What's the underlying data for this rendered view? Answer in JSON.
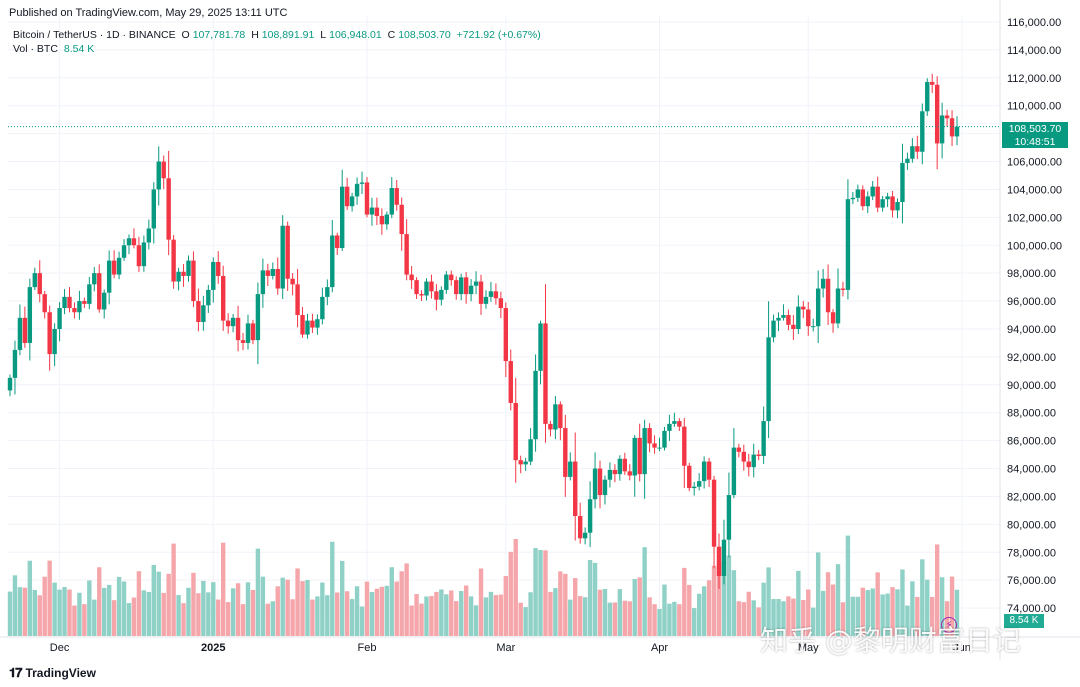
{
  "published": "Published on TradingView.com, May 29, 2025 13:11 UTC",
  "legend": {
    "symbol": "Bitcoin / TetherUS · 1D · BINANCE",
    "o_label": "O",
    "o": "107,781.78",
    "h_label": "H",
    "h": "108,891.91",
    "l_label": "L",
    "l": "106,948.01",
    "c_label": "C",
    "c": "108,503.70",
    "change": "+721.92 (+0.67%)",
    "vol_label": "Vol · BTC",
    "vol": "8.54 K"
  },
  "price_tag": {
    "price": "108,503.70",
    "countdown": "10:48:51"
  },
  "vol_tag": "8.54 K",
  "brand": {
    "name": "TradingView"
  },
  "watermark": "知乎 @黎明财富日记",
  "colors": {
    "up": "#089981",
    "down": "#f23645",
    "vol_up": "#8fd1c6",
    "vol_down": "#f5a6ab",
    "grid": "#f0f3fa"
  },
  "chart_data": {
    "type": "candlestick",
    "title": "Bitcoin / TetherUS · 1D · BINANCE",
    "ylim": [
      72000,
      116500
    ],
    "yticks": [
      "116,000.00",
      "114,000.00",
      "112,000.00",
      "110,000.00",
      "108,000.00",
      "106,000.00",
      "104,000.00",
      "102,000.00",
      "100,000.00",
      "98,000.00",
      "96,000.00",
      "94,000.00",
      "92,000.00",
      "90,000.00",
      "88,000.00",
      "86,000.00",
      "84,000.00",
      "82,000.00",
      "80,000.00",
      "78,000.00",
      "76,000.00",
      "74,000.00"
    ],
    "ytick_values": [
      116000,
      114000,
      112000,
      110000,
      108000,
      106000,
      104000,
      102000,
      100000,
      98000,
      96000,
      94000,
      92000,
      90000,
      88000,
      86000,
      84000,
      82000,
      80000,
      78000,
      76000,
      74000
    ],
    "xticks": [
      {
        "label": "Dec",
        "index": 10
      },
      {
        "label": "2025",
        "index": 41
      },
      {
        "label": "Feb",
        "index": 72
      },
      {
        "label": "Mar",
        "index": 100
      },
      {
        "label": "Apr",
        "index": 131
      },
      {
        "label": "May",
        "index": 161
      },
      {
        "label": "Jun",
        "index": 192
      }
    ],
    "last_price": 108503.7,
    "closes": [
      90500,
      92500,
      94800,
      93000,
      97000,
      98000,
      96500,
      95200,
      92200,
      94000,
      95500,
      96300,
      95500,
      95200,
      96000,
      95800,
      97200,
      98000,
      95400,
      96600,
      98900,
      97900,
      99100,
      100000,
      100500,
      100000,
      98500,
      100200,
      101200,
      104000,
      106000,
      104800,
      100400,
      97400,
      98100,
      97800,
      98900,
      96000,
      94500,
      95700,
      96800,
      98800,
      97800,
      94600,
      94200,
      94800,
      93200,
      93000,
      94400,
      93200,
      96500,
      98200,
      97800,
      98300,
      96900,
      101400,
      97600,
      97200,
      95000,
      93600,
      94600,
      94100,
      94700,
      96300,
      97000,
      100700,
      99800,
      104200,
      102800,
      103500,
      104400,
      104500,
      102200,
      102700,
      102100,
      101500,
      102200,
      104100,
      102900,
      100800,
      97900,
      97500,
      96500,
      96400,
      97400,
      96700,
      96100,
      96800,
      97900,
      97500,
      96500,
      97700,
      96500,
      97100,
      97400,
      95800,
      96300,
      96700,
      96200,
      95500,
      91700,
      88700,
      84600,
      84300,
      84500,
      86100,
      91000,
      94400,
      87200,
      86800,
      88600,
      86900,
      83400,
      84500,
      80600,
      79000,
      79400,
      81800,
      84000,
      82100,
      83200,
      83900,
      83600,
      84700,
      83800,
      83500,
      86200,
      83600,
      86900,
      85800,
      85500,
      85500,
      86700,
      87200,
      87400,
      87000,
      84200,
      82600,
      82700,
      83100,
      84500,
      83200,
      78400,
      76300,
      78900,
      82100,
      85500,
      85200,
      84500,
      84100,
      85000,
      84900,
      87400,
      93400,
      94600,
      94800,
      95000,
      94300,
      94000,
      95600,
      95400,
      94200,
      94200,
      96900,
      97600,
      95200,
      94400,
      96900,
      96800,
      103300,
      103400,
      104000,
      102800,
      103500,
      104200,
      102700,
      103300,
      103500,
      102500,
      103100,
      105900,
      106200,
      107100,
      106700,
      109600,
      111700,
      111500,
      107300,
      109300,
      109100,
      107800,
      108500
    ],
    "volume_note": "Volume histogram in BTC; latest 8.54 K"
  }
}
